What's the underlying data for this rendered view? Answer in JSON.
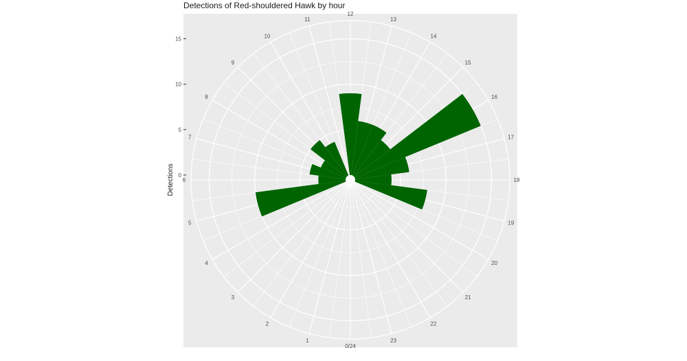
{
  "chart_data": {
    "type": "bar",
    "coord": "polar",
    "title": "Detections of Red-shouldered Hawk by hour",
    "xlabel": "",
    "ylabel": "Detections",
    "categories": [
      "0/24",
      "1",
      "2",
      "3",
      "4",
      "5",
      "6",
      "7",
      "8",
      "9",
      "10",
      "11",
      "12",
      "13",
      "14",
      "15",
      "16",
      "17",
      "18",
      "19",
      "20",
      "21",
      "22",
      "23"
    ],
    "values": [
      0,
      0,
      0,
      0,
      0,
      10,
      3,
      4,
      3,
      5,
      4,
      0,
      9,
      6,
      6,
      5,
      15,
      6,
      4,
      8,
      0,
      0,
      0,
      0
    ],
    "y_ticks": [
      0,
      5,
      10,
      15
    ],
    "ylim": [
      0,
      17
    ],
    "grid": true,
    "colors": {
      "bar": "#006400",
      "panel": "#ebebeb",
      "grid": "#ffffff"
    }
  }
}
